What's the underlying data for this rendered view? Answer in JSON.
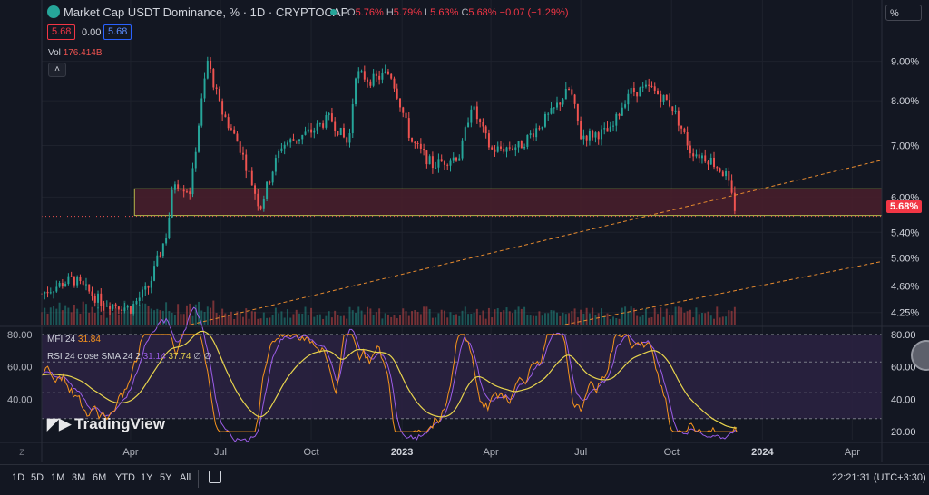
{
  "header": {
    "title": "Market Cap USDT Dominance, % · 1D · CRYPTOCAP",
    "o_label": "O",
    "o": "5.76%",
    "h_label": "H",
    "h": "5.79%",
    "l_label": "L",
    "l": "5.63%",
    "c_label": "C",
    "c": "5.68%",
    "change": "−0.07 (−1.29%)",
    "box_left": "5.68",
    "box_mid": "0.00",
    "box_right": "5.68",
    "vol_label": "Vol",
    "vol_value": "176.414B",
    "currency_box": "%"
  },
  "indicators": {
    "mfi_label": "MFI 24",
    "mfi_value": "31.84",
    "rsi_label": "RSI 24 close SMA 24 2",
    "rsi_value_a": "31.14",
    "rsi_value_b": "37.74",
    "rsi_value_c": "∅",
    "rsi_value_d": "∅"
  },
  "watermark": "TradingView",
  "price_axis": [
    "9.00%",
    "8.00%",
    "7.00%",
    "6.00%",
    "5.40%",
    "5.00%",
    "4.60%",
    "4.25%"
  ],
  "current_price_tag": "5.68%",
  "osc_axis_left": [
    "80.00",
    "60.00",
    "40.00"
  ],
  "osc_axis_right": [
    "80.00",
    "60.00",
    "40.00",
    "20.00"
  ],
  "time_axis": [
    "Apr",
    "Jul",
    "Oct",
    "2023",
    "Apr",
    "Jul",
    "Oct",
    "2024",
    "Apr"
  ],
  "bottom_bar": {
    "ranges": [
      "1D",
      "5D",
      "1M",
      "3M",
      "6M",
      "YTD",
      "1Y",
      "5Y",
      "All"
    ],
    "clock": "22:21:31 (UTC+3:30)",
    "z_label": "Z"
  },
  "colors": {
    "up": "#26a69a",
    "down": "#ef5350",
    "zone_fill": "#4a1f2b",
    "zone_border": "#b5b84a",
    "trend": "#e68a2e",
    "mfi": "#f7941d",
    "rsi": "#9c5de8",
    "sma": "#e8d44d",
    "osc_bg": "#2a2140"
  },
  "chart_data": {
    "type": "candlestick",
    "price_scale": "log",
    "x_range": [
      "2022-01",
      "2024-05"
    ],
    "y_range": [
      4.1,
      9.7
    ],
    "anchors": [
      {
        "x": "2022-01-01",
        "y": 4.5
      },
      {
        "x": "2022-02-01",
        "y": 4.7
      },
      {
        "x": "2022-03-01",
        "y": 4.4
      },
      {
        "x": "2022-04-01",
        "y": 4.3
      },
      {
        "x": "2022-04-20",
        "y": 4.6
      },
      {
        "x": "2022-05-08",
        "y": 5.4
      },
      {
        "x": "2022-05-15",
        "y": 6.3
      },
      {
        "x": "2022-06-01",
        "y": 6.1
      },
      {
        "x": "2022-06-18",
        "y": 9.0
      },
      {
        "x": "2022-07-01",
        "y": 7.8
      },
      {
        "x": "2022-07-20",
        "y": 7.0
      },
      {
        "x": "2022-08-10",
        "y": 5.8
      },
      {
        "x": "2022-09-01",
        "y": 7.0
      },
      {
        "x": "2022-10-01",
        "y": 7.3
      },
      {
        "x": "2022-10-20",
        "y": 7.6
      },
      {
        "x": "2022-11-08",
        "y": 7.0
      },
      {
        "x": "2022-11-15",
        "y": 8.7
      },
      {
        "x": "2022-12-01",
        "y": 8.5
      },
      {
        "x": "2022-12-20",
        "y": 8.7
      },
      {
        "x": "2023-01-10",
        "y": 7.1
      },
      {
        "x": "2023-02-01",
        "y": 6.6
      },
      {
        "x": "2023-03-01",
        "y": 6.8
      },
      {
        "x": "2023-03-12",
        "y": 7.9
      },
      {
        "x": "2023-04-01",
        "y": 6.9
      },
      {
        "x": "2023-05-01",
        "y": 7.0
      },
      {
        "x": "2023-06-01",
        "y": 7.7
      },
      {
        "x": "2023-06-20",
        "y": 8.3
      },
      {
        "x": "2023-07-01",
        "y": 7.2
      },
      {
        "x": "2023-08-01",
        "y": 7.3
      },
      {
        "x": "2023-08-18",
        "y": 8.2
      },
      {
        "x": "2023-09-10",
        "y": 8.3
      },
      {
        "x": "2023-10-01",
        "y": 7.9
      },
      {
        "x": "2023-10-20",
        "y": 6.9
      },
      {
        "x": "2023-11-10",
        "y": 6.7
      },
      {
        "x": "2023-11-25",
        "y": 6.4
      },
      {
        "x": "2023-12-06",
        "y": 5.68
      }
    ],
    "zone": {
      "x_start": "2022-04-01",
      "x_end": "2024-05-01",
      "y_low": 5.68,
      "y_high": 6.15
    },
    "trendlines": [
      {
        "x1": "2022-06-01",
        "y1": 4.1,
        "x2": "2024-05-01",
        "y2": 6.7
      },
      {
        "x1": "2023-06-15",
        "y1": 4.1,
        "x2": "2024-05-01",
        "y2": 4.95
      }
    ],
    "oscillator": {
      "y_range": [
        15,
        85
      ],
      "bands": [
        80,
        63,
        44,
        28
      ],
      "mfi_last": 31.84,
      "rsi_last": 31.14,
      "sma_last": 37.74
    }
  }
}
